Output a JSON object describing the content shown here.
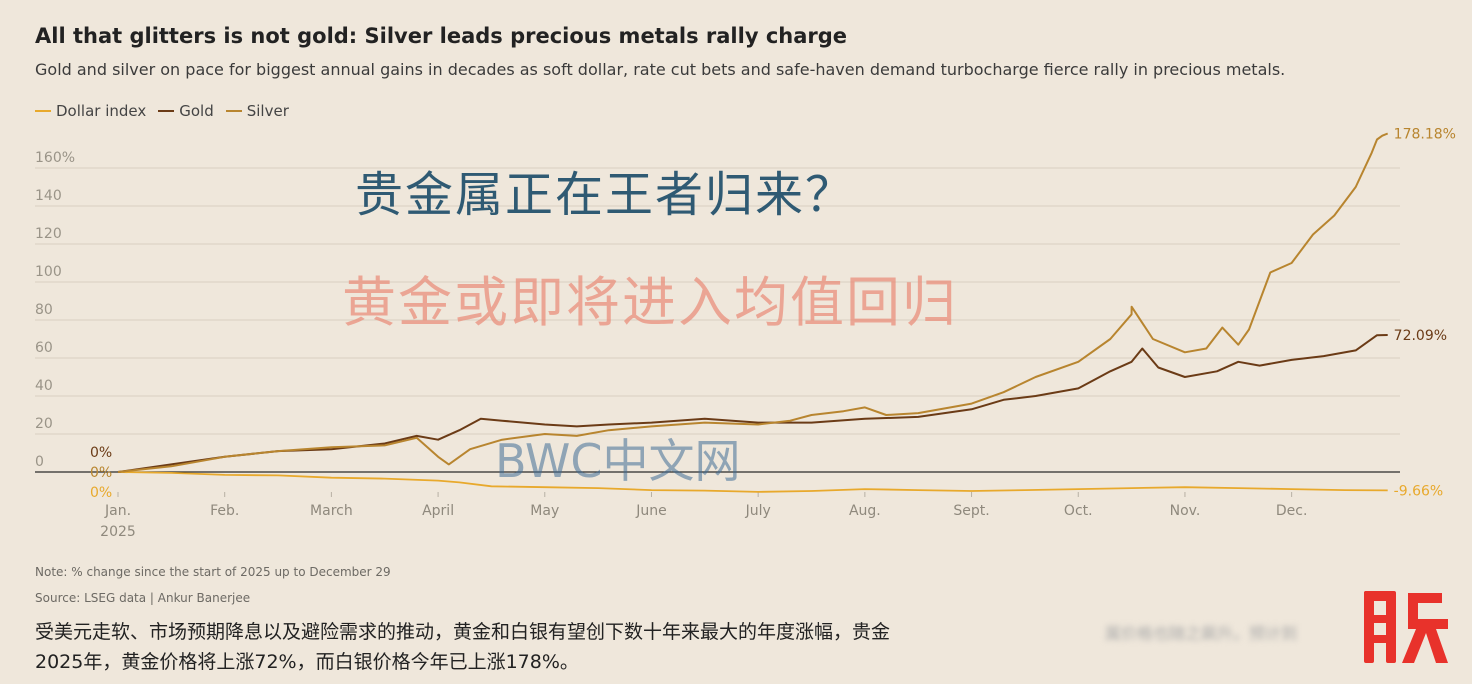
{
  "header": {
    "title": "All that glitters is not gold: Silver leads precious metals rally charge",
    "subtitle": "Gold and silver on pace for biggest annual gains in decades as soft dollar, rate cut bets and safe-haven demand turbocharge fierce rally in precious metals."
  },
  "overlay": {
    "headline": "贵金属正在王者归来？",
    "subheadline": "黄金或即将进入均值回归",
    "watermark": "BWC中文网"
  },
  "footer": {
    "note": "Note: % change since the start of 2025 up to December 29",
    "source": "Source: LSEG data | Ankur Banerjee",
    "caption": "受美元走软、市场预期降息以及避险需求的推动，黄金和白银有望创下数十年来最大的年度涨幅，贵金属价格也随之飙升。预计到2025年，黄金价格将上涨72%，而白银价格今年已上涨178%。",
    "caption_visible": "受美元走软、市场预期降息以及避险需求的推动，黄金和白银有望创下数十年来最大的年度涨幅，贵金",
    "caption_line2": "2025年，黄金价格将上涨72%，而白银价格今年已上涨178%。",
    "blurred_tail": "属价格也随之飙升。预计到"
  },
  "colors": {
    "dollar": "#e8a92c",
    "gold": "#6b3b16",
    "silver": "#b8852f",
    "zero_line": "#2b2b2b",
    "grid": "#d8cfc1",
    "logo_red": "#e8322b"
  },
  "icons": {
    "logo": "stock-logo-icon"
  },
  "chart_data": {
    "type": "line",
    "title": "All that glitters is not gold: Silver leads precious metals rally charge",
    "subtitle": "Gold and silver on pace for biggest annual gains in decades as soft dollar, rate cut bets and safe-haven demand turbocharge fierce rally in precious metals.",
    "xlabel": "",
    "ylabel": "",
    "ylim": [
      -10,
      180
    ],
    "yticks": [
      0,
      20,
      40,
      60,
      80,
      100,
      120,
      140,
      160
    ],
    "ytick_labels": [
      "0",
      "20",
      "40",
      "60",
      "80",
      "100",
      "120",
      "140",
      "160%"
    ],
    "xlim": [
      1,
      12.95
    ],
    "xticks": [
      1,
      2,
      3,
      4,
      5,
      6,
      7,
      8,
      9,
      10,
      11,
      12
    ],
    "xtick_labels": [
      "Jan.",
      "Feb.",
      "March",
      "April",
      "May",
      "June",
      "July",
      "Aug.",
      "Sept.",
      "Oct.",
      "Nov.",
      "Dec."
    ],
    "xtick_sublabel": "2025",
    "grid": true,
    "legend": "top-left",
    "series": [
      {
        "name": "Dollar index",
        "start_label": "0%",
        "end_label": "-9.66%",
        "x": [
          1,
          1.5,
          2,
          2.5,
          3,
          3.5,
          4,
          4.2,
          4.5,
          5,
          5.5,
          6,
          6.5,
          7,
          7.5,
          8,
          8.5,
          9,
          9.5,
          10,
          10.5,
          11,
          11.5,
          12,
          12.5,
          12.9
        ],
        "values": [
          0,
          -0.5,
          -1.5,
          -1.8,
          -3,
          -3.5,
          -4.5,
          -5.5,
          -7.5,
          -8,
          -8.5,
          -9.5,
          -9.8,
          -10.5,
          -10,
          -9,
          -9.5,
          -10,
          -9.5,
          -9,
          -8.5,
          -8,
          -8.5,
          -9,
          -9.5,
          -9.66
        ]
      },
      {
        "name": "Gold",
        "start_label": "0%",
        "end_label": "72.09%",
        "x": [
          1,
          1.5,
          2,
          2.5,
          3,
          3.5,
          3.8,
          4,
          4.2,
          4.4,
          4.6,
          5,
          5.3,
          5.6,
          6,
          6.5,
          7,
          7.5,
          8,
          8.5,
          9,
          9.3,
          9.6,
          10,
          10.3,
          10.5,
          10.6,
          10.75,
          11,
          11.3,
          11.5,
          11.7,
          12,
          12.3,
          12.6,
          12.8,
          12.9
        ],
        "values": [
          0,
          4,
          8,
          11,
          12,
          15,
          19,
          17,
          22,
          28,
          27,
          25,
          24,
          25,
          26,
          28,
          26,
          26,
          28,
          29,
          33,
          38,
          40,
          44,
          53,
          58,
          65,
          55,
          50,
          53,
          58,
          56,
          59,
          61,
          64,
          72,
          72.09
        ]
      },
      {
        "name": "Silver",
        "start_label": "0%",
        "end_label": "178.18%",
        "x": [
          1,
          1.5,
          2,
          2.5,
          3,
          3.5,
          3.8,
          4,
          4.1,
          4.3,
          4.6,
          5,
          5.3,
          5.6,
          6,
          6.5,
          7,
          7.3,
          7.5,
          7.8,
          8,
          8.2,
          8.5,
          9,
          9.3,
          9.6,
          10,
          10.3,
          10.5,
          10.5,
          10.7,
          11,
          11.2,
          11.35,
          11.5,
          11.6,
          11.8,
          12,
          12.2,
          12.4,
          12.6,
          12.75,
          12.8,
          12.85,
          12.9
        ],
        "values": [
          0,
          3,
          8,
          11,
          13,
          14,
          18,
          8,
          4,
          12,
          17,
          20,
          19,
          22,
          24,
          26,
          25,
          27,
          30,
          32,
          34,
          30,
          31,
          36,
          42,
          50,
          58,
          70,
          83,
          87,
          70,
          63,
          65,
          76,
          67,
          75,
          105,
          110,
          125,
          135,
          150,
          168,
          175,
          177,
          178.18
        ]
      }
    ]
  }
}
